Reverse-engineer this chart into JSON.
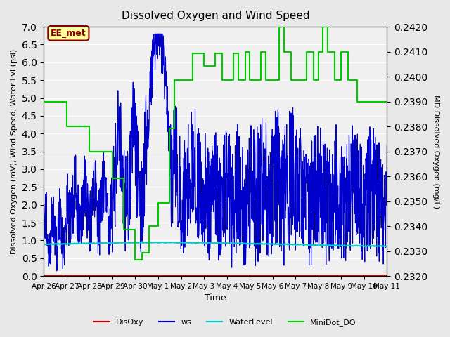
{
  "title": "Dissolved Oxygen and Wind Speed",
  "ylabel_left": "Dissolved Oxygen (mV), Wind Speed, Water Lvl (psi)",
  "ylabel_right": "MD Dissolved Oxygen (mg/L)",
  "xlabel": "Time",
  "ylim_left": [
    0.0,
    7.0
  ],
  "ylim_right": [
    0.232,
    0.242
  ],
  "yticks_left": [
    0.0,
    0.5,
    1.0,
    1.5,
    2.0,
    2.5,
    3.0,
    3.5,
    4.0,
    4.5,
    5.0,
    5.5,
    6.0,
    6.5,
    7.0
  ],
  "yticks_right": [
    0.232,
    0.233,
    0.234,
    0.235,
    0.236,
    0.237,
    0.238,
    0.239,
    0.24,
    0.241,
    0.242
  ],
  "xtick_labels": [
    "Apr 26",
    "Apr 27",
    "Apr 28",
    "Apr 29",
    "Apr 30",
    "May 1",
    "May 2",
    "May 3",
    "May 4",
    "May 5",
    "May 6",
    "May 7",
    "May 8",
    "May 9",
    "May 10",
    "May 11"
  ],
  "annotation": "EE_met",
  "annotation_color": "#8B0000",
  "annotation_bg": "#FFFF99",
  "bg_color": "#E8E8E8",
  "plot_bg_color": "#F0F0F0",
  "grid_color": "#FFFFFF",
  "disoxy_color": "#CC0000",
  "ws_color": "#0000CC",
  "waterlevel_color": "#00CCCC",
  "minidot_color": "#00CC00",
  "legend_items": [
    "DisOxy",
    "ws",
    "WaterLevel",
    "MiniDot_DO"
  ],
  "legend_colors": [
    "#CC0000",
    "#0000CC",
    "#00CCCC",
    "#00CC00"
  ]
}
